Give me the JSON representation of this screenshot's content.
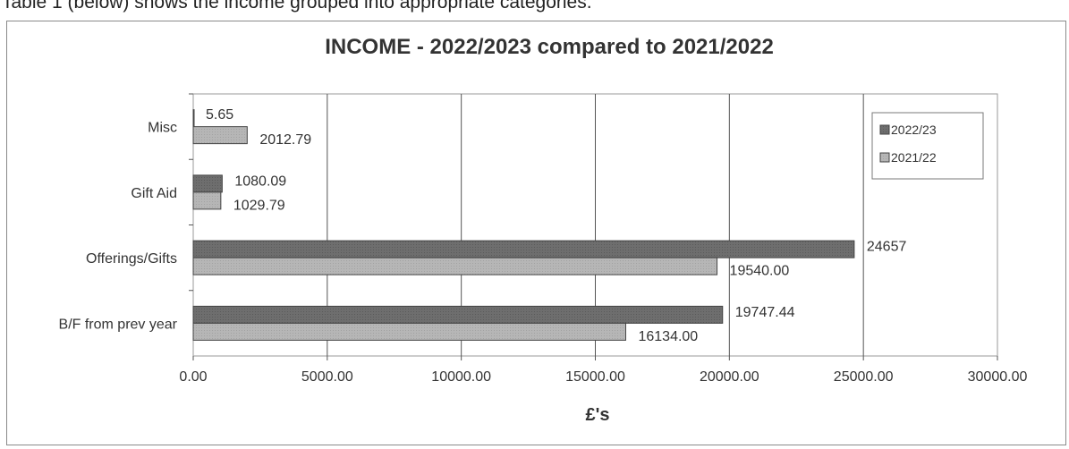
{
  "top_caption": "Table 1 (below) shows the income grouped into appropriate categories.",
  "chart_data": {
    "type": "bar",
    "orientation": "horizontal",
    "title": "INCOME  - 2022/2023 compared to 2021/2022",
    "xlabel": "£'s",
    "ylabel": "",
    "xlim": [
      0,
      30000
    ],
    "x_ticks": [
      0,
      5000,
      10000,
      15000,
      20000,
      25000,
      30000
    ],
    "x_tick_labels": [
      "0.00",
      "5000.00",
      "10000.00",
      "15000.00",
      "20000.00",
      "25000.00",
      "30000.00"
    ],
    "categories": [
      "Misc",
      "Gift Aid",
      "Offerings/Gifts",
      "B/F from prev year"
    ],
    "series": [
      {
        "name": "2022/23",
        "color": "#6b6b6b",
        "values": [
          5.65,
          1080.09,
          24657,
          19747.44
        ],
        "labels": [
          "5.65",
          "1080.09",
          "24657",
          "19747.44"
        ]
      },
      {
        "name": "2021/22",
        "color": "#b4b4b4",
        "values": [
          2012.79,
          1029.79,
          19540.0,
          16134.0
        ],
        "labels": [
          "2012.79",
          "1029.79",
          "19540.00",
          "16134.00"
        ]
      }
    ],
    "grid": true,
    "legend_position": "top-right"
  }
}
